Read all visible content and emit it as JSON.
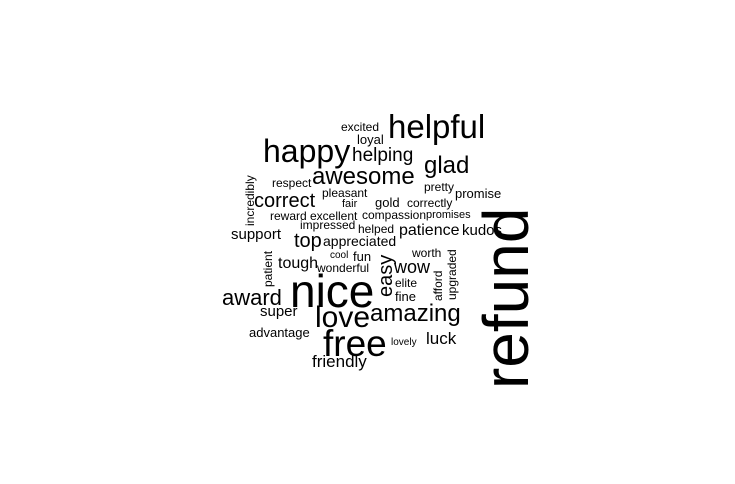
{
  "words": {
    "refund": "refund",
    "nice": "nice",
    "helpful": "helpful",
    "happy": "happy",
    "free": "free",
    "love": "love",
    "awesome": "awesome",
    "amazing": "amazing",
    "award": "award",
    "glad": "glad",
    "helping": "helping",
    "correct": "correct",
    "easy": "easy",
    "top": "top",
    "wow": "wow",
    "friendly": "friendly",
    "luck": "luck",
    "tough": "tough",
    "super": "super",
    "support": "support",
    "patience": "patience",
    "kudos": "kudos",
    "advantage": "advantage",
    "appreciated": "appreciated",
    "fine": "fine",
    "excited": "excited",
    "loyal": "loyal",
    "respect": "respect",
    "pleasant": "pleasant",
    "pretty": "pretty",
    "promise": "promise",
    "fair": "fair",
    "gold": "gold",
    "correctly": "correctly",
    "reward": "reward",
    "excellent": "excellent",
    "compassion": "compassion",
    "promises": "promises",
    "impressed": "impressed",
    "helped": "helped",
    "worth": "worth",
    "cool": "cool",
    "fun": "fun",
    "wonderful": "wonderful",
    "elite": "elite",
    "lovely": "lovely",
    "incredibly": "incredibly",
    "patient": "patient",
    "afford": "afford",
    "upgraded": "upgraded"
  }
}
